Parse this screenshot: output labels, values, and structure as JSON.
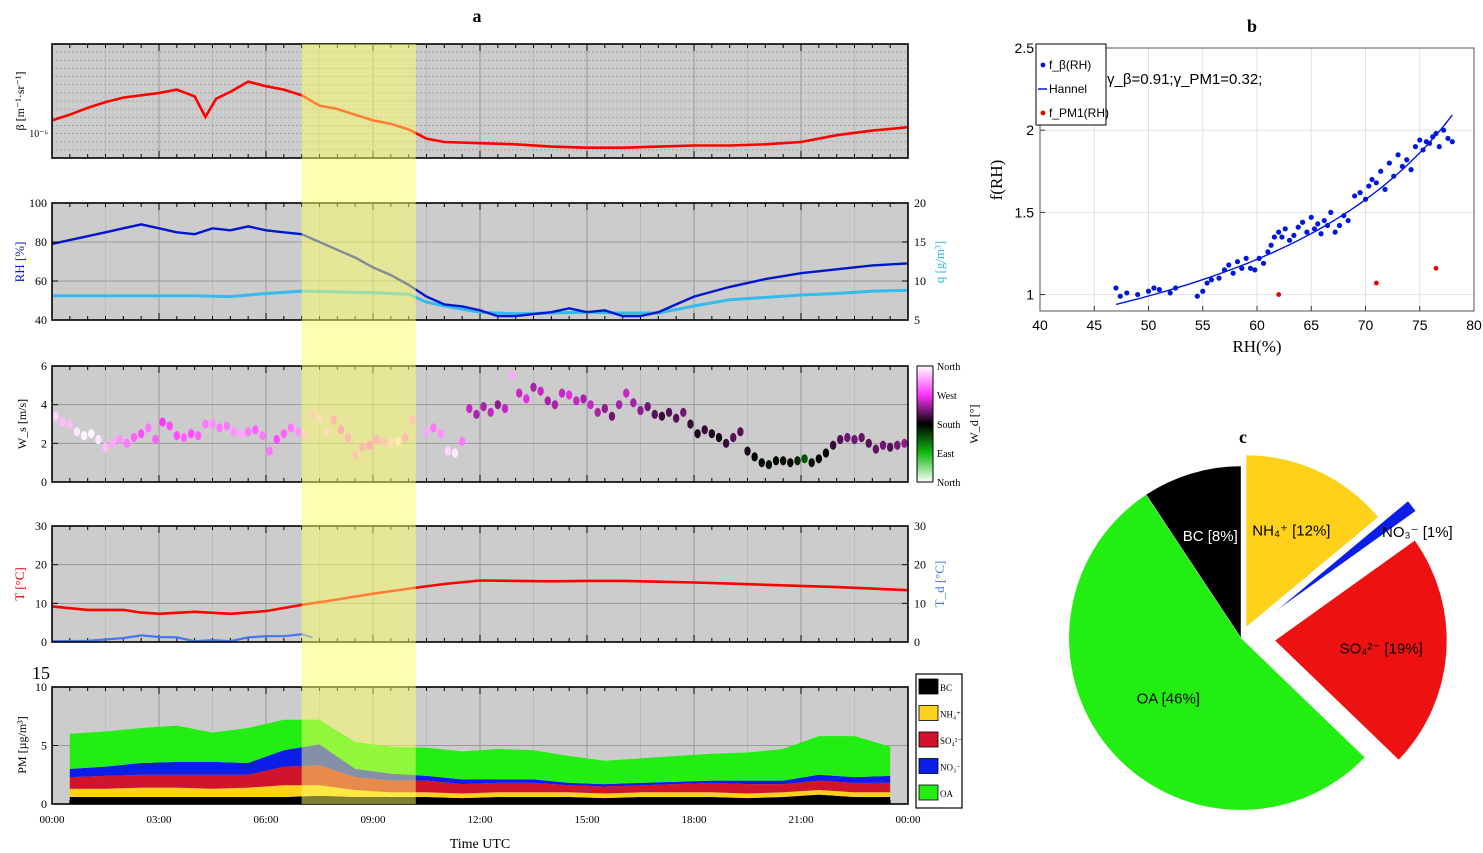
{
  "panel_a": {
    "letter": "a",
    "time_axis": {
      "tick_labels": [
        "00:00",
        "03:00",
        "06:00",
        "09:00",
        "12:00",
        "15:00",
        "18:00",
        "21:00",
        "00:00"
      ],
      "label": "Time UTC",
      "range_hours": [
        0,
        24
      ]
    },
    "highlight_window_hours": [
      7.0,
      10.2
    ],
    "highlight_color": "#ffff66"
  },
  "chart_data": [
    {
      "id": "beta",
      "type": "line",
      "ylabel": "β [m⁻¹·sr⁻¹]",
      "y_tick_label": "10⁻⁶",
      "ylim": [
        0,
        1
      ],
      "grid": true,
      "series": [
        {
          "color": "#ff0000",
          "x": [
            0,
            0.5,
            1,
            1.5,
            2,
            2.5,
            3,
            3.5,
            4,
            4.3,
            4.6,
            5,
            5.5,
            6,
            6.5,
            7,
            7.5,
            8,
            8.5,
            9,
            9.5,
            10,
            10.5,
            11,
            12,
            13,
            14,
            15,
            16,
            17,
            18,
            19,
            20,
            21,
            22,
            23,
            24
          ],
          "y": [
            0.33,
            0.38,
            0.44,
            0.49,
            0.53,
            0.55,
            0.57,
            0.6,
            0.54,
            0.36,
            0.52,
            0.58,
            0.67,
            0.63,
            0.6,
            0.55,
            0.46,
            0.43,
            0.38,
            0.33,
            0.3,
            0.25,
            0.17,
            0.14,
            0.13,
            0.12,
            0.1,
            0.09,
            0.09,
            0.1,
            0.11,
            0.11,
            0.12,
            0.14,
            0.2,
            0.24,
            0.27
          ]
        }
      ]
    },
    {
      "id": "rh_q",
      "type": "line",
      "ylabel": "RH [%]",
      "y2label": "q [g/m³]",
      "ylim": [
        40,
        100
      ],
      "y2lim": [
        5,
        20
      ],
      "y_ticks": [
        40,
        60,
        80,
        100
      ],
      "y2_ticks": [
        5,
        10,
        15,
        20
      ],
      "grid": true,
      "series": [
        {
          "color": "#0018cc",
          "x": [
            0,
            0.5,
            1,
            1.5,
            2,
            2.5,
            3,
            3.5,
            4,
            4.5,
            5,
            5.5,
            6,
            6.5,
            7,
            7.5,
            8,
            8.5,
            9,
            9.5,
            10,
            10.5,
            11,
            11.5,
            12,
            12.5,
            13,
            13.5,
            14,
            14.5,
            15,
            15.5,
            16,
            16.5,
            17,
            17.5,
            18,
            19,
            20,
            21,
            22,
            23,
            24
          ],
          "y": [
            79,
            81,
            83,
            85,
            87,
            89,
            87,
            85,
            84,
            87,
            86,
            88,
            86,
            85,
            84,
            80,
            76,
            72,
            67,
            63,
            58,
            52,
            48,
            47,
            45,
            42,
            42,
            43,
            44,
            46,
            44,
            45,
            42,
            42,
            44,
            48,
            52,
            57,
            61,
            64,
            66,
            68,
            69
          ]
        },
        {
          "color": "#33bbee",
          "axis": "right",
          "x": [
            0,
            2,
            4,
            5,
            6,
            7,
            8,
            9,
            10,
            10.5,
            11,
            12,
            13,
            14,
            15,
            16,
            17,
            18,
            19,
            20,
            21,
            22,
            23,
            24
          ],
          "y": [
            8.1,
            8.1,
            8.1,
            8.0,
            8.4,
            8.7,
            8.6,
            8.5,
            8.3,
            7.3,
            6.8,
            6.0,
            5.8,
            5.9,
            6.0,
            5.9,
            5.9,
            6.8,
            7.6,
            7.9,
            8.2,
            8.4,
            8.7,
            8.8
          ]
        }
      ]
    },
    {
      "id": "wind",
      "type": "scatter",
      "ylabel": "W_s [m/s]",
      "y2label": "W_d [°]",
      "ylim": [
        0,
        6
      ],
      "y_ticks": [
        0,
        2,
        4,
        6
      ],
      "colorbar_labels": [
        "North",
        "West",
        "South",
        "East",
        "North"
      ],
      "grid": true,
      "x": [
        0.1,
        0.3,
        0.5,
        0.7,
        0.9,
        1.1,
        1.3,
        1.5,
        1.7,
        1.9,
        2.1,
        2.3,
        2.5,
        2.7,
        2.9,
        3.1,
        3.3,
        3.5,
        3.7,
        3.9,
        4.1,
        4.3,
        4.5,
        4.7,
        4.9,
        5.1,
        5.3,
        5.5,
        5.7,
        5.9,
        6.1,
        6.3,
        6.5,
        6.7,
        6.9,
        7.1,
        7.3,
        7.5,
        7.7,
        7.9,
        8.1,
        8.3,
        8.5,
        8.7,
        8.9,
        9.1,
        9.3,
        9.5,
        9.7,
        9.9,
        10.1,
        10.5,
        10.7,
        10.9,
        11.1,
        11.3,
        11.5,
        11.7,
        11.9,
        12.1,
        12.3,
        12.5,
        12.7,
        12.9,
        13.1,
        13.3,
        13.5,
        13.7,
        13.9,
        14.1,
        14.3,
        14.5,
        14.7,
        14.9,
        15.1,
        15.3,
        15.5,
        15.7,
        15.9,
        16.1,
        16.3,
        16.5,
        16.7,
        16.9,
        17.1,
        17.3,
        17.5,
        17.7,
        17.9,
        18.1,
        18.3,
        18.5,
        18.7,
        18.9,
        19.1,
        19.3,
        19.5,
        19.7,
        19.9,
        20.1,
        20.3,
        20.5,
        20.7,
        20.9,
        21.1,
        21.3,
        21.5,
        21.7,
        21.9,
        22.1,
        22.3,
        22.5,
        22.7,
        22.9,
        23.1,
        23.3,
        23.5,
        23.7,
        23.9
      ],
      "y": [
        3.4,
        3.1,
        3.0,
        2.6,
        2.4,
        2.5,
        2.2,
        1.8,
        2.0,
        2.2,
        2.0,
        2.3,
        2.5,
        2.8,
        2.2,
        3.1,
        2.9,
        2.4,
        2.3,
        2.5,
        2.4,
        3.0,
        3.0,
        2.8,
        2.9,
        2.6,
        2.5,
        2.6,
        2.7,
        2.4,
        1.6,
        2.2,
        2.5,
        2.8,
        2.6,
        2.4,
        3.5,
        3.3,
        2.6,
        3.2,
        2.7,
        2.3,
        1.4,
        1.8,
        1.9,
        2.2,
        2.1,
        2.0,
        2.1,
        2.3,
        3.2,
        2.6,
        2.8,
        2.5,
        1.6,
        1.5,
        2.1,
        3.8,
        3.5,
        3.9,
        3.6,
        4.0,
        3.8,
        5.5,
        4.6,
        4.3,
        4.9,
        4.7,
        4.2,
        4.0,
        4.6,
        4.5,
        4.2,
        4.3,
        4.0,
        3.6,
        3.8,
        3.4,
        4.0,
        4.6,
        4.1,
        3.7,
        3.9,
        3.5,
        3.4,
        3.6,
        3.3,
        3.6,
        3.0,
        2.5,
        2.7,
        2.5,
        2.3,
        2.0,
        2.3,
        2.6,
        1.6,
        1.3,
        1.0,
        0.9,
        1.1,
        1.1,
        1.0,
        1.1,
        1.2,
        1.0,
        1.2,
        1.5,
        1.9,
        2.2,
        2.3,
        2.2,
        2.3,
        2.0,
        1.7,
        1.9,
        1.8,
        1.9,
        2.0
      ],
      "direction_deg": [
        340,
        330,
        330,
        350,
        355,
        355,
        350,
        330,
        320,
        310,
        300,
        290,
        280,
        300,
        290,
        270,
        280,
        280,
        290,
        280,
        290,
        300,
        310,
        300,
        300,
        310,
        320,
        300,
        290,
        300,
        300,
        280,
        290,
        300,
        310,
        320,
        320,
        330,
        330,
        300,
        290,
        300,
        310,
        300,
        290,
        300,
        310,
        330,
        340,
        300,
        310,
        320,
        300,
        310,
        340,
        350,
        300,
        250,
        240,
        240,
        250,
        230,
        250,
        320,
        250,
        260,
        240,
        250,
        240,
        240,
        250,
        260,
        250,
        240,
        250,
        240,
        230,
        220,
        240,
        250,
        240,
        230,
        220,
        210,
        200,
        210,
        210,
        220,
        200,
        190,
        200,
        190,
        190,
        200,
        210,
        210,
        190,
        180,
        175,
        170,
        180,
        175,
        175,
        160,
        140,
        170,
        180,
        180,
        200,
        210,
        220,
        220,
        215,
        210,
        215,
        220,
        210,
        220,
        230
      ]
    },
    {
      "id": "temp",
      "type": "line",
      "ylabel": "T [°C]",
      "y2label": "T_d [°C]",
      "ylim": [
        0,
        30
      ],
      "y_ticks": [
        0,
        10,
        20,
        30
      ],
      "grid": true,
      "series": [
        {
          "color": "#ff0000",
          "x": [
            0,
            1,
            2,
            2.5,
            3,
            4,
            5,
            6,
            7,
            8,
            9,
            10,
            11,
            12,
            13,
            14,
            15,
            16,
            17,
            18,
            19,
            20,
            21,
            22,
            23,
            24
          ],
          "y": [
            9.2,
            8.3,
            8.3,
            7.6,
            7.3,
            7.8,
            7.3,
            8.0,
            9.6,
            11.0,
            12.5,
            13.8,
            15.0,
            15.9,
            15.8,
            15.7,
            15.8,
            15.8,
            15.6,
            15.4,
            15.1,
            14.8,
            14.5,
            14.2,
            13.8,
            13.4
          ]
        },
        {
          "color": "#4477ee",
          "x": [
            0,
            1,
            2,
            2.5,
            3,
            3.5,
            4,
            4.5,
            5,
            5.5,
            6,
            6.5,
            7,
            7.3
          ],
          "y": [
            0.2,
            0.3,
            1.0,
            1.7,
            1.3,
            1.2,
            0.2,
            0.5,
            0.2,
            1.2,
            1.5,
            1.5,
            2.0,
            1.2
          ]
        }
      ]
    },
    {
      "id": "pm",
      "type": "area",
      "ylabel": "PM [µg/m³]",
      "ylim": [
        0,
        10
      ],
      "y_ticks": [
        0,
        5,
        10
      ],
      "y_top_label": "15",
      "grid": true,
      "x": [
        0.5,
        1.5,
        2.5,
        3.5,
        4.5,
        5.5,
        6.5,
        7.5,
        8.5,
        9.5,
        10.5,
        11.5,
        12.5,
        13.5,
        14.5,
        15.5,
        16.5,
        17.5,
        18.5,
        19.5,
        20.5,
        21.5,
        22.5,
        23.5
      ],
      "series": [
        {
          "name": "BC",
          "color": "#000000",
          "values": [
            0.6,
            0.6,
            0.6,
            0.6,
            0.6,
            0.6,
            0.6,
            0.7,
            0.6,
            0.6,
            0.6,
            0.5,
            0.6,
            0.6,
            0.6,
            0.5,
            0.6,
            0.6,
            0.6,
            0.5,
            0.6,
            0.8,
            0.6,
            0.6
          ]
        },
        {
          "name": "NH₄⁺",
          "color": "#ffd11a",
          "values": [
            0.7,
            0.7,
            0.8,
            0.8,
            0.7,
            0.8,
            1.0,
            0.9,
            0.6,
            0.4,
            0.4,
            0.4,
            0.4,
            0.4,
            0.4,
            0.4,
            0.4,
            0.4,
            0.4,
            0.4,
            0.4,
            0.4,
            0.4,
            0.4
          ]
        },
        {
          "name": "SO₄²⁻",
          "color": "#d0142c",
          "values": [
            1.0,
            1.1,
            1.1,
            1.1,
            1.2,
            1.1,
            1.6,
            1.7,
            1.1,
            1.0,
            1.0,
            0.8,
            0.8,
            0.8,
            0.6,
            0.6,
            0.6,
            0.7,
            0.8,
            0.8,
            0.7,
            0.8,
            0.8,
            0.8
          ]
        },
        {
          "name": "NO₃⁻",
          "color": "#0a1ee8",
          "values": [
            0.7,
            0.8,
            1.0,
            1.1,
            1.1,
            1.0,
            1.4,
            1.8,
            0.7,
            0.6,
            0.4,
            0.4,
            0.3,
            0.3,
            0.2,
            0.2,
            0.2,
            0.2,
            0.2,
            0.3,
            0.3,
            0.5,
            0.5,
            0.6
          ]
        },
        {
          "name": "OA",
          "color": "#22ee11",
          "values": [
            3.0,
            3.0,
            3.0,
            3.1,
            2.5,
            3.0,
            2.6,
            2.1,
            2.3,
            2.3,
            2.4,
            2.4,
            2.6,
            2.5,
            2.3,
            2.0,
            2.1,
            2.2,
            2.3,
            2.4,
            2.7,
            3.3,
            3.5,
            2.5
          ]
        }
      ]
    },
    {
      "id": "scatter_b",
      "type": "scatter",
      "letter": "b",
      "xlabel": "RH(%)",
      "ylabel": "f(RH)",
      "xlim": [
        40,
        80
      ],
      "ylim": [
        0.9,
        2.5
      ],
      "x_ticks": [
        40,
        45,
        50,
        55,
        60,
        65,
        70,
        75,
        80
      ],
      "y_ticks": [
        1,
        1.5,
        2,
        2.5
      ],
      "grid": true,
      "annotation": "γ_β=0.91;γ_PM1=0.32;",
      "legend": {
        "placement": "top-left",
        "entries": [
          "f_β(RH)",
          "Hannel",
          "f_PM1(RH)"
        ]
      },
      "series": [
        {
          "name": "f_β(RH)",
          "color": "#0018dd",
          "x": [
            47,
            47.4,
            48,
            49,
            50,
            50.5,
            51,
            52,
            52.5,
            54.5,
            55,
            55.4,
            55.8,
            56.5,
            57,
            57.4,
            57.8,
            58.2,
            58.6,
            59,
            59.4,
            59.8,
            60.2,
            60.6,
            61,
            61.3,
            61.6,
            62,
            62.3,
            62.6,
            63,
            63.4,
            63.8,
            64.2,
            64.6,
            65,
            65.3,
            65.6,
            65.9,
            66.2,
            66.5,
            66.8,
            67.2,
            67.6,
            68,
            68.4,
            69,
            69.5,
            70,
            70.3,
            70.6,
            71,
            71.4,
            71.8,
            72.2,
            72.6,
            73,
            73.4,
            73.8,
            74.2,
            74.6,
            75,
            75.3,
            75.6,
            75.9,
            76.2,
            76.5,
            76.8,
            77.2,
            77.6,
            78
          ],
          "y": [
            1.04,
            0.99,
            1.01,
            1.0,
            1.02,
            1.04,
            1.03,
            1.01,
            1.04,
            0.99,
            1.02,
            1.07,
            1.09,
            1.1,
            1.15,
            1.18,
            1.13,
            1.2,
            1.16,
            1.22,
            1.16,
            1.15,
            1.22,
            1.19,
            1.26,
            1.3,
            1.35,
            1.38,
            1.35,
            1.4,
            1.33,
            1.36,
            1.41,
            1.44,
            1.38,
            1.47,
            1.4,
            1.43,
            1.37,
            1.45,
            1.42,
            1.5,
            1.38,
            1.42,
            1.48,
            1.45,
            1.6,
            1.62,
            1.58,
            1.66,
            1.7,
            1.68,
            1.75,
            1.64,
            1.8,
            1.72,
            1.85,
            1.78,
            1.82,
            1.76,
            1.9,
            1.94,
            1.88,
            1.93,
            1.92,
            1.96,
            1.98,
            1.9,
            2.0,
            1.95,
            1.93
          ]
        },
        {
          "name": "Hannel",
          "color": "#0018dd",
          "fit": true,
          "gamma": 0.91
        },
        {
          "name": "f_PM1(RH)",
          "color": "#ee0000",
          "x": [
            62,
            71,
            76.5
          ],
          "y": [
            1.0,
            1.07,
            1.16
          ]
        }
      ]
    },
    {
      "id": "pie_c",
      "type": "pie",
      "letter": "c",
      "slices": [
        {
          "label": "NH₄⁺ [12%]",
          "value": 12,
          "color": "#ffd11a"
        },
        {
          "label": "NO₃⁻ [1%]",
          "value": 1,
          "color": "#0a1ee8"
        },
        {
          "label": "SO₄²⁻ [19%]",
          "value": 19,
          "color": "#ee1111"
        },
        {
          "label": "OA [46%]",
          "value": 46,
          "color": "#22ee11"
        },
        {
          "label": "BC [8%]",
          "value": 8,
          "color": "#000000"
        }
      ]
    }
  ]
}
